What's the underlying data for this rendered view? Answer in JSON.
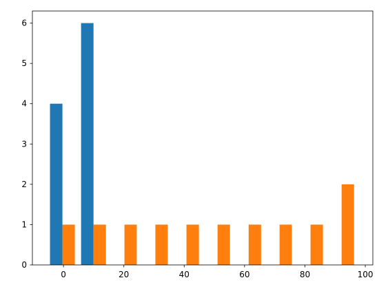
{
  "chart_data": {
    "type": "histogram",
    "bins": [
      -5.5,
      4.8,
      15.1,
      25.3,
      35.6,
      45.9,
      56.2,
      66.5,
      76.7,
      87.0,
      97.3
    ],
    "series": [
      {
        "color": "#1f77b4",
        "values": [
          4,
          6,
          0,
          0,
          0,
          0,
          0,
          0,
          0,
          0
        ]
      },
      {
        "color": "#ff7f0e",
        "values": [
          1,
          1,
          1,
          1,
          1,
          1,
          1,
          1,
          1,
          2
        ]
      }
    ],
    "xlim": [
      -10.3,
      102.5
    ],
    "xticks": [
      0,
      20,
      40,
      60,
      80,
      100
    ],
    "ylim": [
      0,
      6.3
    ],
    "yticks": [
      0,
      1,
      2,
      3,
      4,
      5,
      6
    ]
  }
}
